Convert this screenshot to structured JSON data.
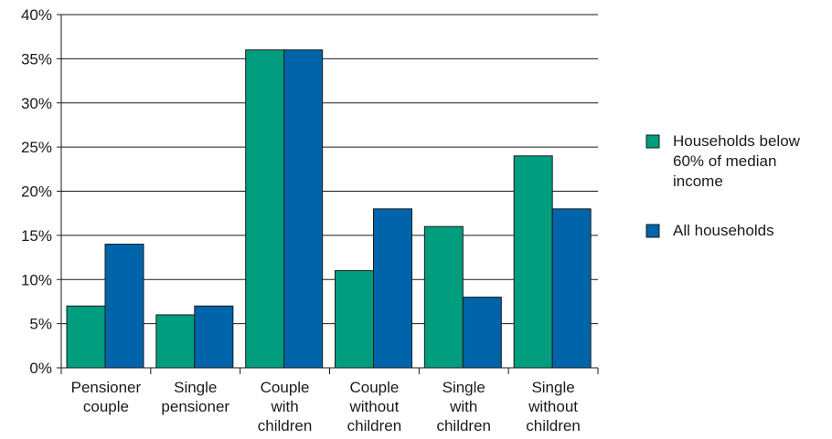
{
  "chart_data": {
    "type": "bar",
    "categories": [
      [
        "Pensioner",
        "couple"
      ],
      [
        "Single",
        "pensioner"
      ],
      [
        "Couple",
        "with",
        "children"
      ],
      [
        "Couple",
        "without",
        "children"
      ],
      [
        "Single",
        "with",
        "children"
      ],
      [
        "Single",
        "without",
        "children"
      ]
    ],
    "series": [
      {
        "name": [
          "Households below",
          "60% of median",
          "income"
        ],
        "color": "#009e7e",
        "values": [
          7,
          6,
          36,
          11,
          16,
          24
        ]
      },
      {
        "name": [
          "All households"
        ],
        "color": "#0064aa",
        "values": [
          14,
          7,
          36,
          18,
          8,
          18
        ]
      }
    ],
    "ylim": [
      0,
      40
    ],
    "yticks": [
      0,
      5,
      10,
      15,
      20,
      25,
      30,
      35,
      40
    ],
    "ytick_suffix": "%",
    "grid": true,
    "legend_position": "right"
  }
}
